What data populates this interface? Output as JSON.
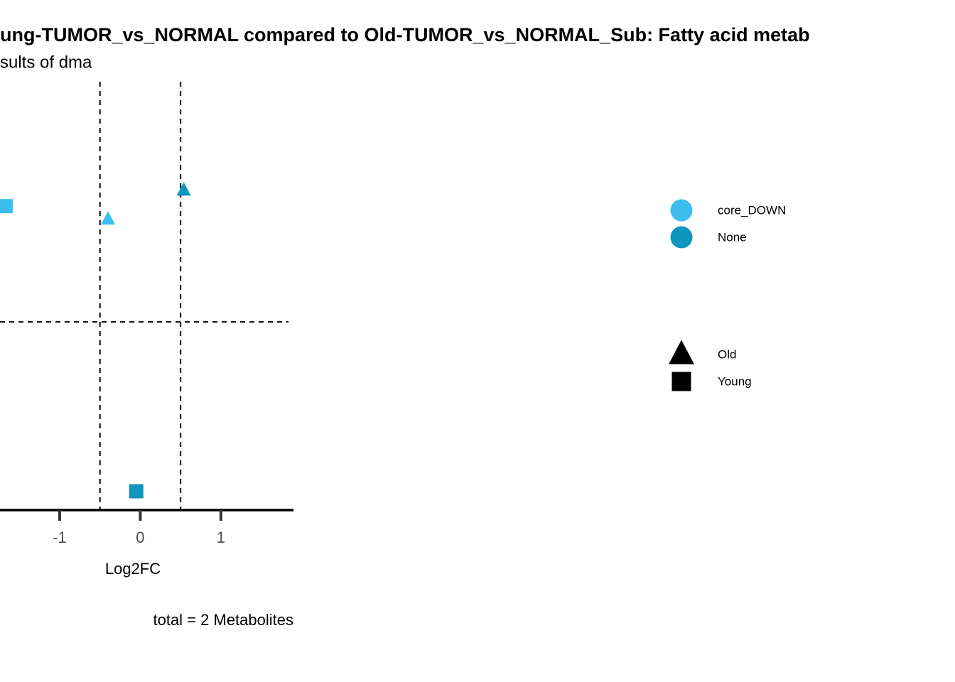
{
  "chart_data": {
    "type": "scatter",
    "title": "ung-TUMOR_vs_NORMAL compared to Old-TUMOR_vs_NORMAL_Sub: Fatty acid metab",
    "subtitle": "sults of dma",
    "x_label": "Log2FC",
    "caption": "total = 2 Metabolites",
    "xlim": [
      -1.74,
      1.9
    ],
    "xticks": [
      -1,
      0,
      1
    ],
    "ylim": [
      0,
      2.96
    ],
    "vlines": [
      -0.5,
      0.5
    ],
    "hline": 1.3,
    "series": [
      {
        "name": "core_DOWN",
        "color": "#3bbdee",
        "x": [
          -1.67,
          -0.4
        ],
        "values": [
          2.1,
          2.01
        ],
        "shapes": [
          "square",
          "triangle"
        ]
      },
      {
        "name": "None",
        "color": "#0e96be",
        "x": [
          0.54,
          -0.05
        ],
        "values": [
          2.21,
          0.13
        ],
        "shapes": [
          "triangle",
          "square"
        ]
      }
    ],
    "shape_legend": [
      {
        "name": "Old",
        "shape": "triangle"
      },
      {
        "name": "Young",
        "shape": "square"
      }
    ]
  }
}
